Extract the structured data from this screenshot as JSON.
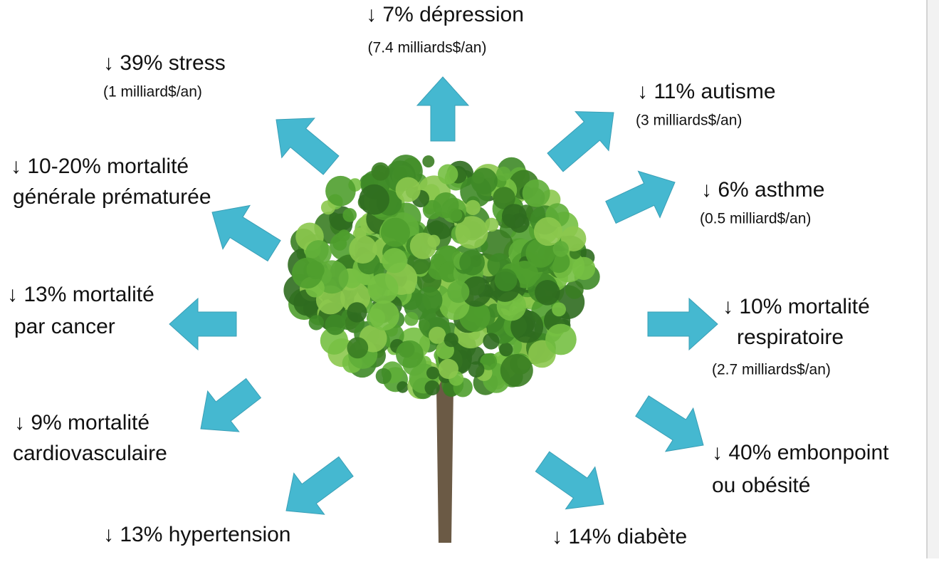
{
  "nodes": [
    {
      "lines": [
        "↓ 7% dépression"
      ],
      "note": "(7.4 milliards$/an)"
    },
    {
      "lines": [
        "↓ 39% stress"
      ],
      "note": "(1 milliard$/an)"
    },
    {
      "lines": [
        "↓ 11% autisme"
      ],
      "note": "(3 milliards$/an)"
    },
    {
      "lines": [
        "↓ 10-20% mortalité",
        "générale prématurée"
      ]
    },
    {
      "lines": [
        "↓ 6% asthme"
      ],
      "note": "(0.5 milliard$/an)"
    },
    {
      "lines": [
        "↓ 13% mortalité",
        "par cancer"
      ]
    },
    {
      "lines": [
        "↓ 10% mortalité",
        "respiratoire"
      ],
      "note": "(2.7 milliards$/an)"
    },
    {
      "lines": [
        "↓ 9% mortalité",
        "cardiovasculaire"
      ]
    },
    {
      "lines": [
        "↓ 40% embonpoint",
        "ou obésité"
      ]
    },
    {
      "lines": [
        "↓ 13% hypertension"
      ]
    },
    {
      "lines": [
        "↓ 14% diabète"
      ]
    }
  ]
}
